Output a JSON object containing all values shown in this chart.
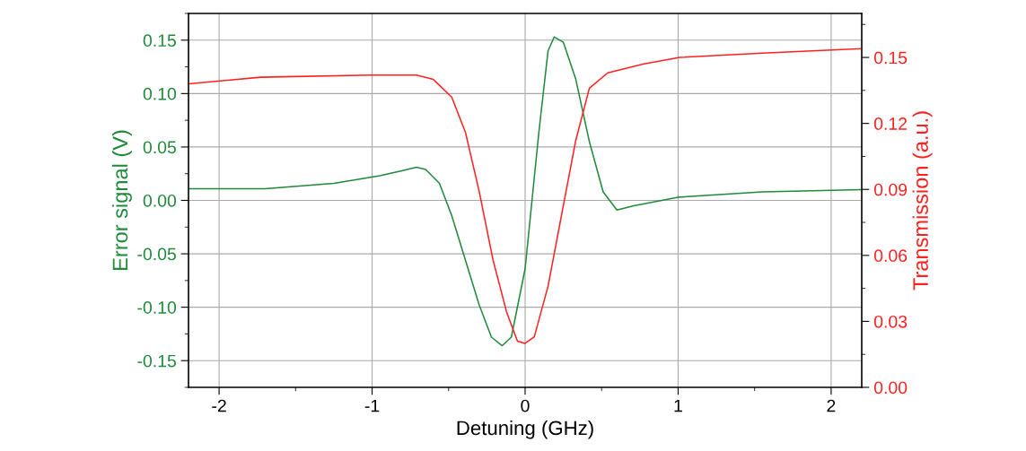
{
  "chart_data": {
    "type": "line",
    "xlabel": "Detuning (GHz)",
    "ylabel": "Error signal (V)",
    "y2label": "Transmission (a.u.)",
    "xlim": [
      -2.2,
      2.2
    ],
    "xticks": [
      {
        "value": -2,
        "label": "-2"
      },
      {
        "value": -1,
        "label": "-1"
      },
      0,
      1,
      2
    ],
    "ylim": [
      -0.175,
      0.175
    ],
    "yticks": [
      {
        "value": -0.15,
        "label": "-0.15"
      },
      {
        "value": -0.1,
        "label": "-0.10"
      },
      {
        "value": -0.05,
        "label": "-0.05"
      },
      {
        "value": 0,
        "label": "0.00"
      },
      {
        "value": 0.05,
        "label": "0.05"
      },
      {
        "value": 0.1,
        "label": "0.10"
      },
      0.15
    ],
    "y2lim": [
      0,
      0.17
    ],
    "y2ticks": [
      {
        "value": 0,
        "label": "0.00"
      },
      0.03,
      0.06,
      0.09,
      0.12,
      0.15
    ],
    "grid": true,
    "legend": false,
    "marker": "none",
    "line_style": "solid",
    "series": [
      {
        "color": "#1f8a3a",
        "x": [
          -2.2,
          -1.7,
          -1.25,
          -0.95,
          -0.8,
          -0.71,
          -0.65,
          -0.56,
          -0.48,
          -0.39,
          -0.3,
          -0.22,
          -0.15,
          -0.09,
          0.0,
          0.09,
          0.15,
          0.19,
          0.25,
          0.33,
          0.42,
          0.51,
          0.6,
          0.71,
          1.0,
          1.55,
          2.2
        ],
        "values": [
          0.011,
          0.011,
          0.016,
          0.023,
          0.028,
          0.031,
          0.029,
          0.016,
          -0.014,
          -0.056,
          -0.098,
          -0.128,
          -0.136,
          -0.128,
          -0.064,
          0.064,
          0.14,
          0.153,
          0.148,
          0.114,
          0.055,
          0.008,
          -0.009,
          -0.005,
          0.003,
          0.008,
          0.01
        ]
      },
      {
        "color": "#ff2020",
        "axis": "y2",
        "x": [
          -2.2,
          -1.73,
          -1.01,
          -0.71,
          -0.6,
          -0.48,
          -0.39,
          -0.3,
          -0.21,
          -0.12,
          -0.05,
          0.0,
          0.06,
          0.15,
          0.24,
          0.33,
          0.42,
          0.54,
          0.77,
          1.01,
          1.55,
          2.2
        ],
        "values": [
          0.138,
          0.141,
          0.142,
          0.142,
          0.14,
          0.132,
          0.116,
          0.089,
          0.058,
          0.034,
          0.021,
          0.02,
          0.023,
          0.046,
          0.079,
          0.112,
          0.136,
          0.143,
          0.147,
          0.15,
          0.152,
          0.154
        ]
      }
    ]
  }
}
